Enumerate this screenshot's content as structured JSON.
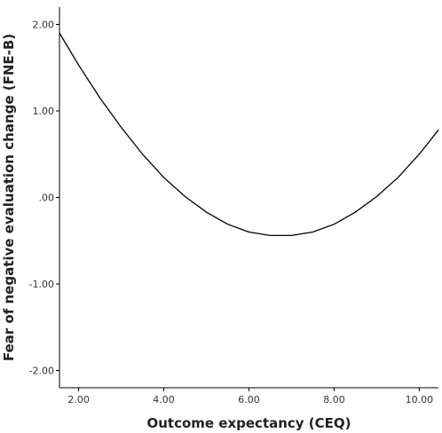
{
  "chart_data": {
    "type": "line",
    "xlabel": "Outcome expectancy (CEQ)",
    "ylabel": "Fear of negative evaluation change (FNE-B)",
    "xlim": [
      1.55,
      10.45
    ],
    "ylim": [
      -2.2,
      2.2
    ],
    "x_ticks": [
      2.0,
      4.0,
      6.0,
      8.0,
      10.0
    ],
    "x_tick_labels": [
      "2.00",
      "4.00",
      "6.00",
      "8.00",
      "10.00"
    ],
    "y_ticks": [
      2.0,
      1.0,
      0.0,
      -1.0,
      -2.0
    ],
    "y_tick_labels": [
      "2.00",
      "1.00",
      ".00",
      "-1.00",
      "-2.00"
    ],
    "grid": false,
    "legend": "none",
    "line_color": "#000000",
    "series": [
      {
        "x": [
          1.55,
          2.0,
          2.5,
          3.0,
          3.5,
          4.0,
          4.5,
          5.0,
          5.5,
          6.0,
          6.5,
          7.0,
          7.5,
          8.0,
          8.5,
          9.0,
          9.5,
          10.0,
          10.45
        ],
        "y": [
          1.9,
          1.53,
          1.15,
          0.81,
          0.5,
          0.23,
          0.01,
          -0.17,
          -0.31,
          -0.4,
          -0.44,
          -0.44,
          -0.4,
          -0.31,
          -0.17,
          0.01,
          0.23,
          0.5,
          0.78
        ]
      }
    ]
  }
}
